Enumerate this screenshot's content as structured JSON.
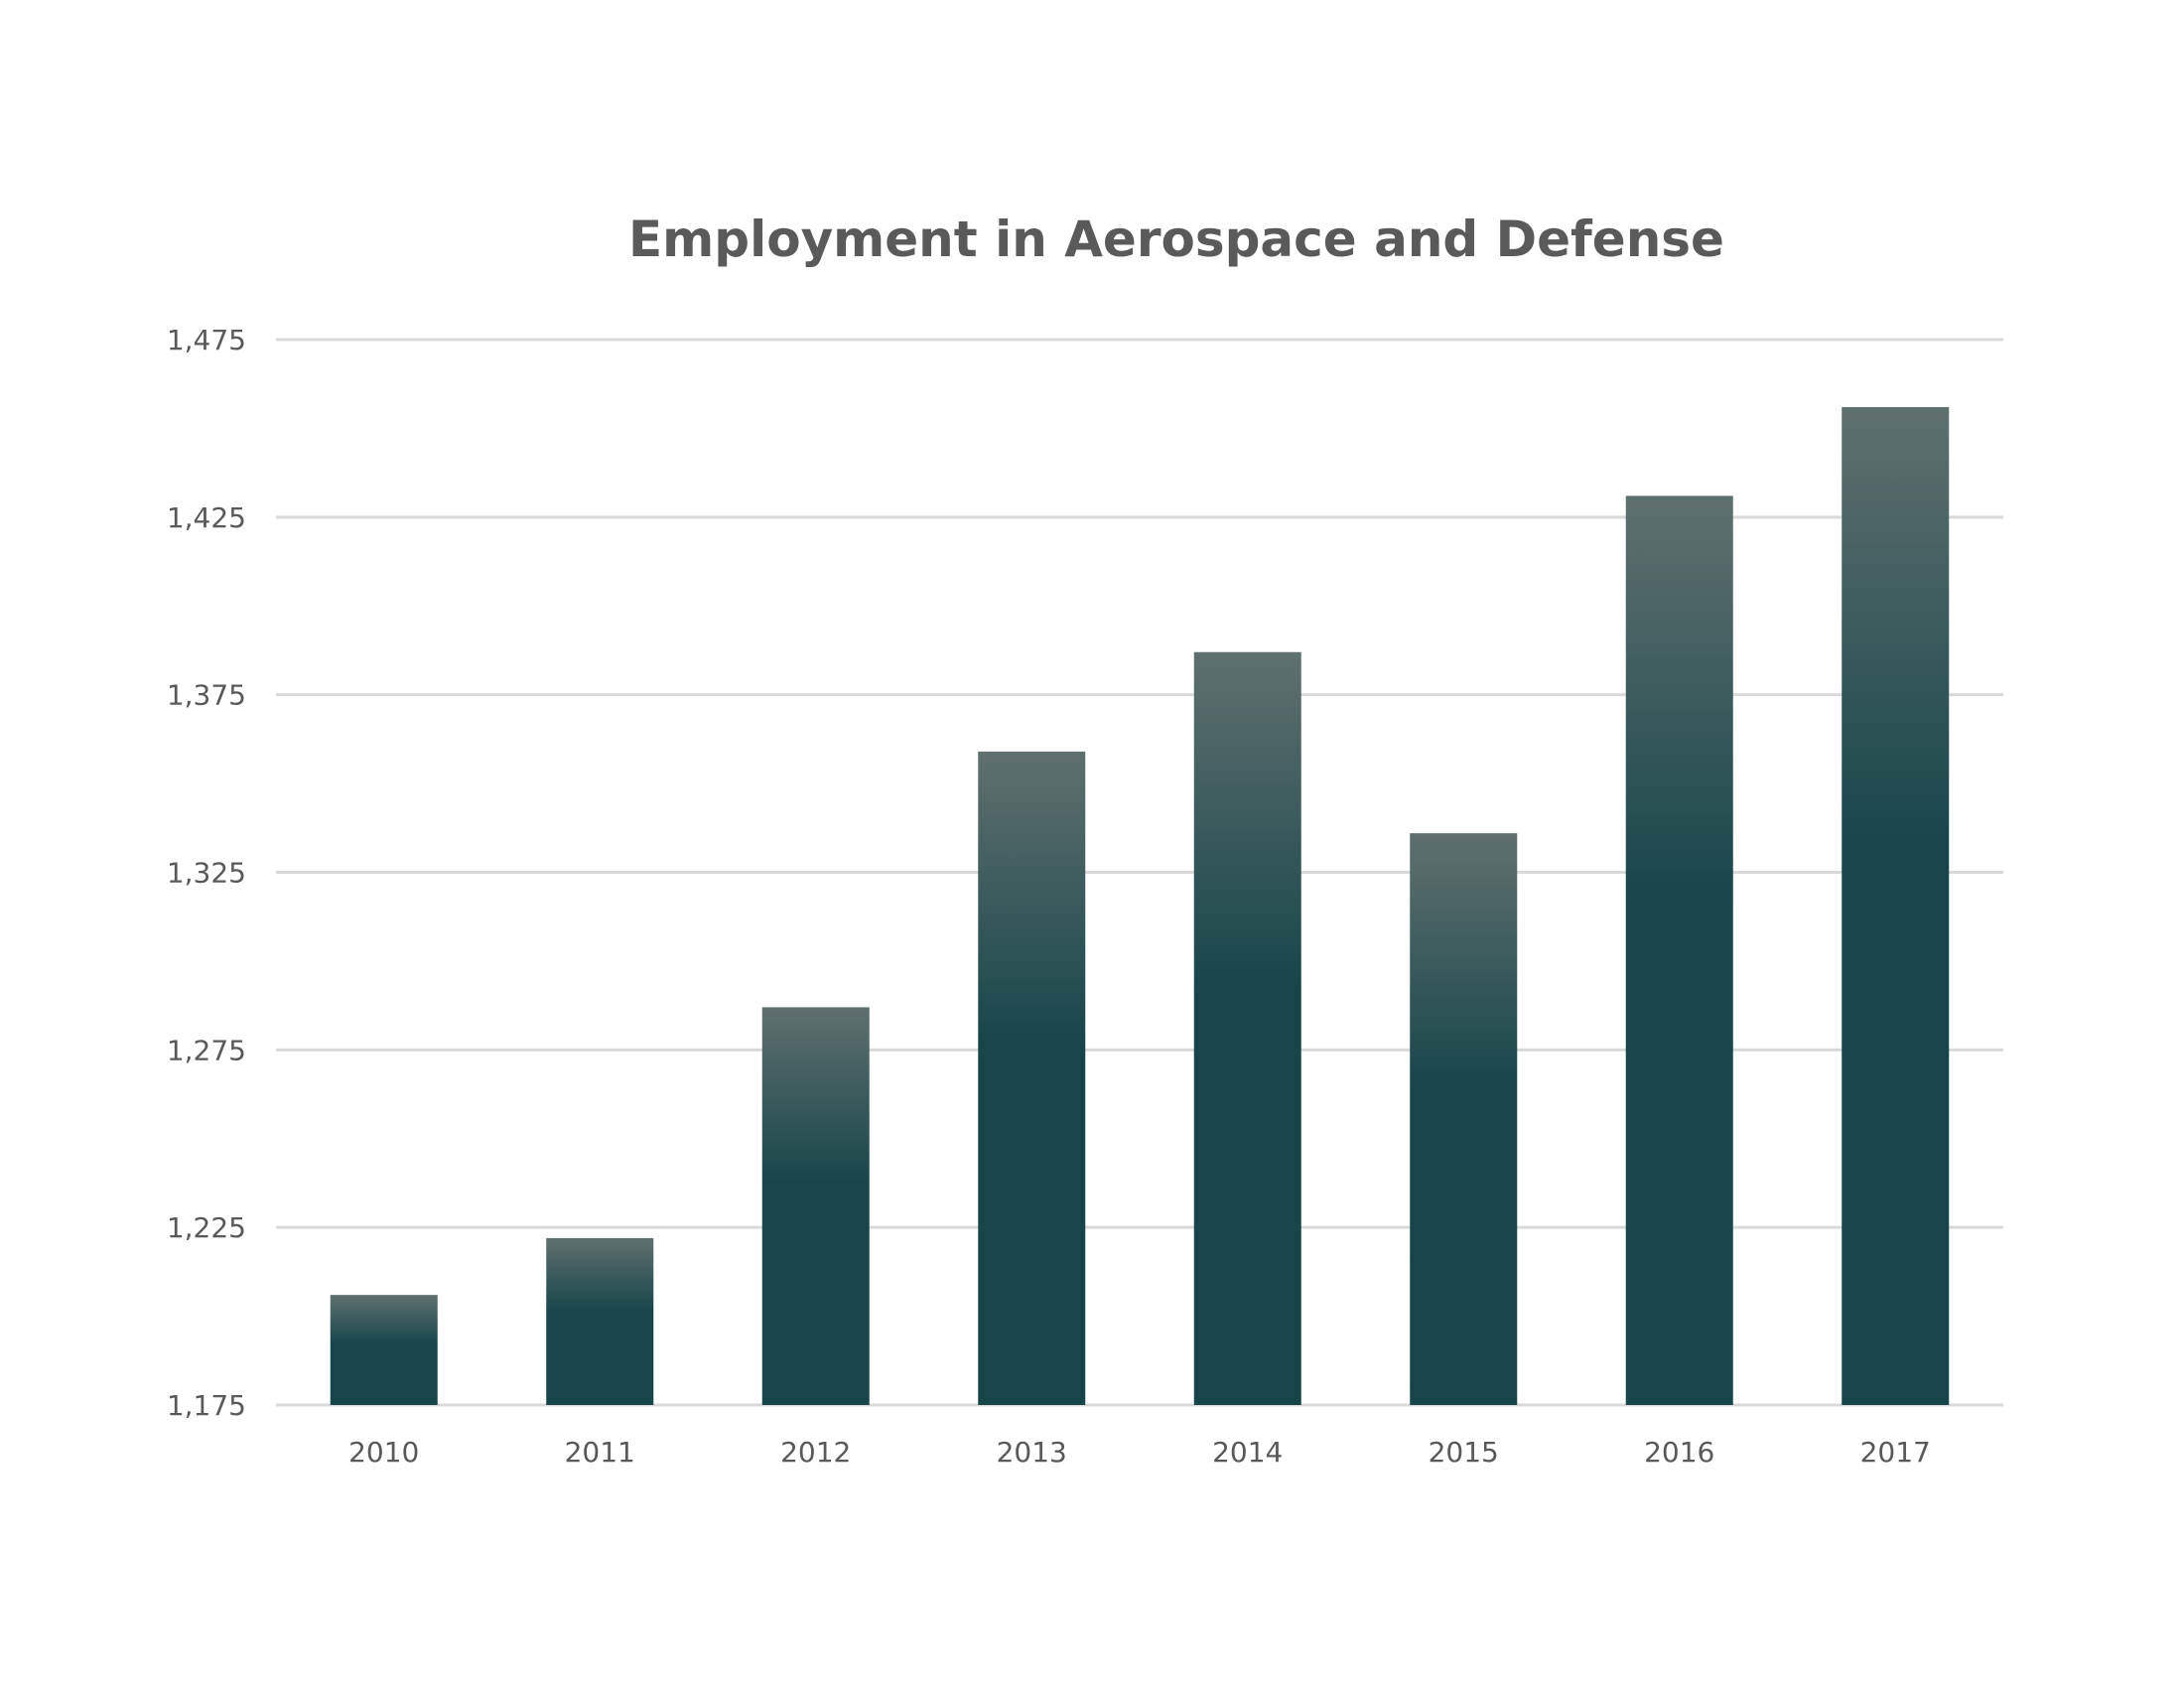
{
  "chart_data": {
    "type": "bar",
    "title": "Employment in Aerospace and Defense",
    "xlabel": "",
    "ylabel": "",
    "categories": [
      "2010",
      "2011",
      "2012",
      "2013",
      "2014",
      "2015",
      "2016",
      "2017"
    ],
    "values": [
      1206,
      1222,
      1287,
      1359,
      1387,
      1336,
      1431,
      1456
    ],
    "ylim": [
      1175,
      1475
    ],
    "yticks": [
      1175,
      1225,
      1275,
      1325,
      1375,
      1425,
      1475
    ],
    "ytick_labels": [
      "1,175",
      "1,225",
      "1,275",
      "1,325",
      "1,375",
      "1,425",
      "1,475"
    ],
    "grid": true,
    "legend": "none",
    "colors": {
      "bar_top": "#5f706e",
      "bar_bottom": "#17454a",
      "grid": "#d9d9d9",
      "text": "#595959",
      "title": "#5a5a5a"
    }
  }
}
